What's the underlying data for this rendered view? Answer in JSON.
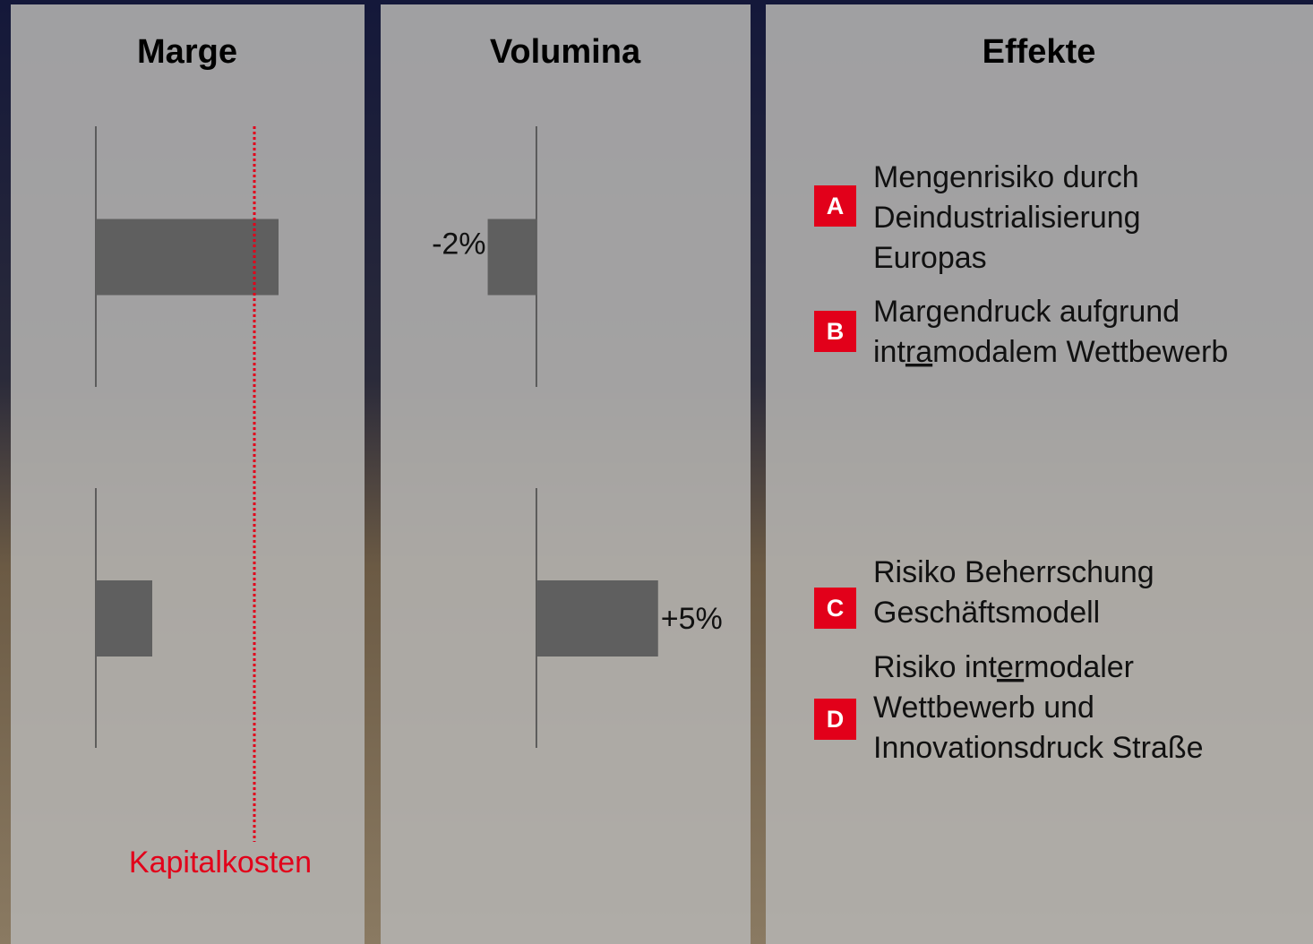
{
  "chart_data": [
    {
      "type": "hbar",
      "title": "Marge",
      "categories": [
        null,
        null
      ],
      "values": [
        68,
        21
      ],
      "color": "#5f5f5f",
      "xlim": [
        0,
        100
      ],
      "reference_line": {
        "value": 59,
        "label": "Kapitalkosten",
        "color": "#e2001a"
      }
    },
    {
      "type": "hbar",
      "title": "Volumina",
      "categories": [
        null,
        null
      ],
      "values": [
        -2,
        5
      ],
      "value_labels": [
        "-2%",
        "+5%"
      ],
      "color": "#5f5f5f",
      "xlim": [
        -6.4,
        8.8
      ]
    }
  ],
  "effects": {
    "title": "Effekte",
    "items": [
      {
        "letter": "A",
        "lines": [
          [
            "Mengenrisiko durch"
          ],
          [
            "Deindustrialisierung"
          ],
          [
            "Europas"
          ]
        ]
      },
      {
        "letter": "B",
        "lines": [
          [
            "Margendruck aufgrund"
          ],
          [
            "int",
            {
              "underline": "ra"
            },
            "modalem Wettbewerb"
          ]
        ]
      },
      {
        "letter": "C",
        "lines": [
          [
            "Risiko Beherrschung"
          ],
          [
            "Geschäftsmodell"
          ]
        ]
      },
      {
        "letter": "D",
        "lines": [
          [
            "Risiko int",
            {
              "underline": "er"
            },
            "modaler"
          ],
          [
            "Wettbewerb und"
          ],
          [
            "Innovationsdruck Straße"
          ]
        ]
      }
    ]
  }
}
